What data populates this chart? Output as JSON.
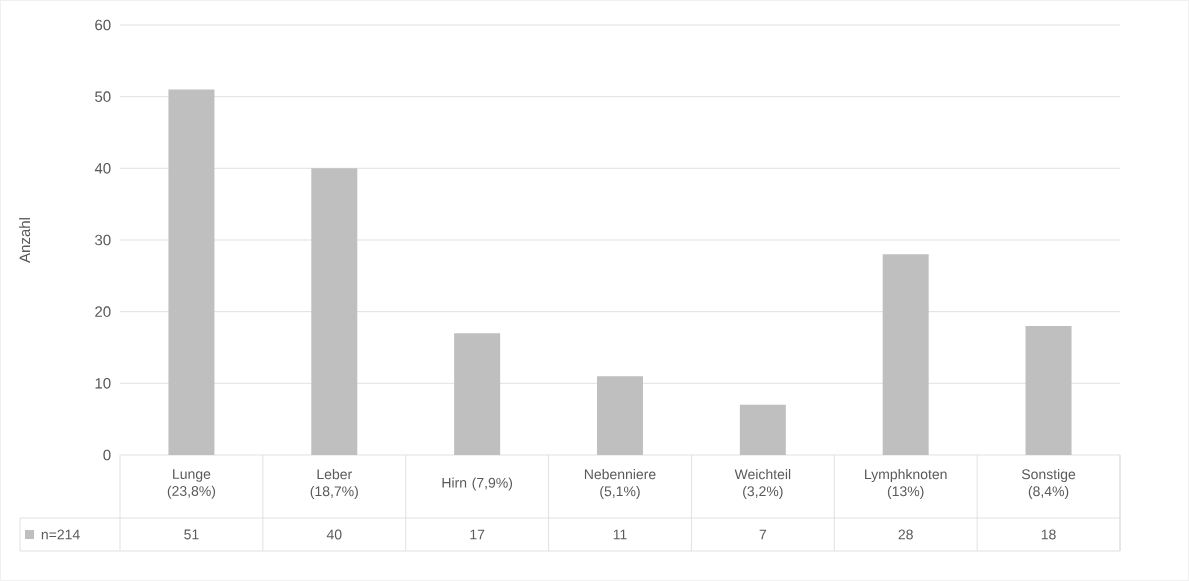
{
  "chart_data": {
    "type": "bar",
    "ylabel": "Anzahl",
    "categories": [
      "Lunge (23,8%)",
      "Leber (18,7%)",
      "Hirn (7,9%)",
      "Nebenniere (5,1%)",
      "Weichteil (3,2%)",
      "Lymphknoten (13%)",
      "Sonstige (8,4%)"
    ],
    "series": [
      {
        "name": "n=214",
        "color": "#bfbfbf",
        "values": [
          51,
          40,
          17,
          11,
          7,
          28,
          18
        ]
      }
    ],
    "ylim": [
      0,
      60
    ],
    "yticks": [
      0,
      10,
      20,
      30,
      40,
      50,
      60
    ],
    "grid": "y",
    "data_labels": true,
    "legend": "bottom left"
  }
}
